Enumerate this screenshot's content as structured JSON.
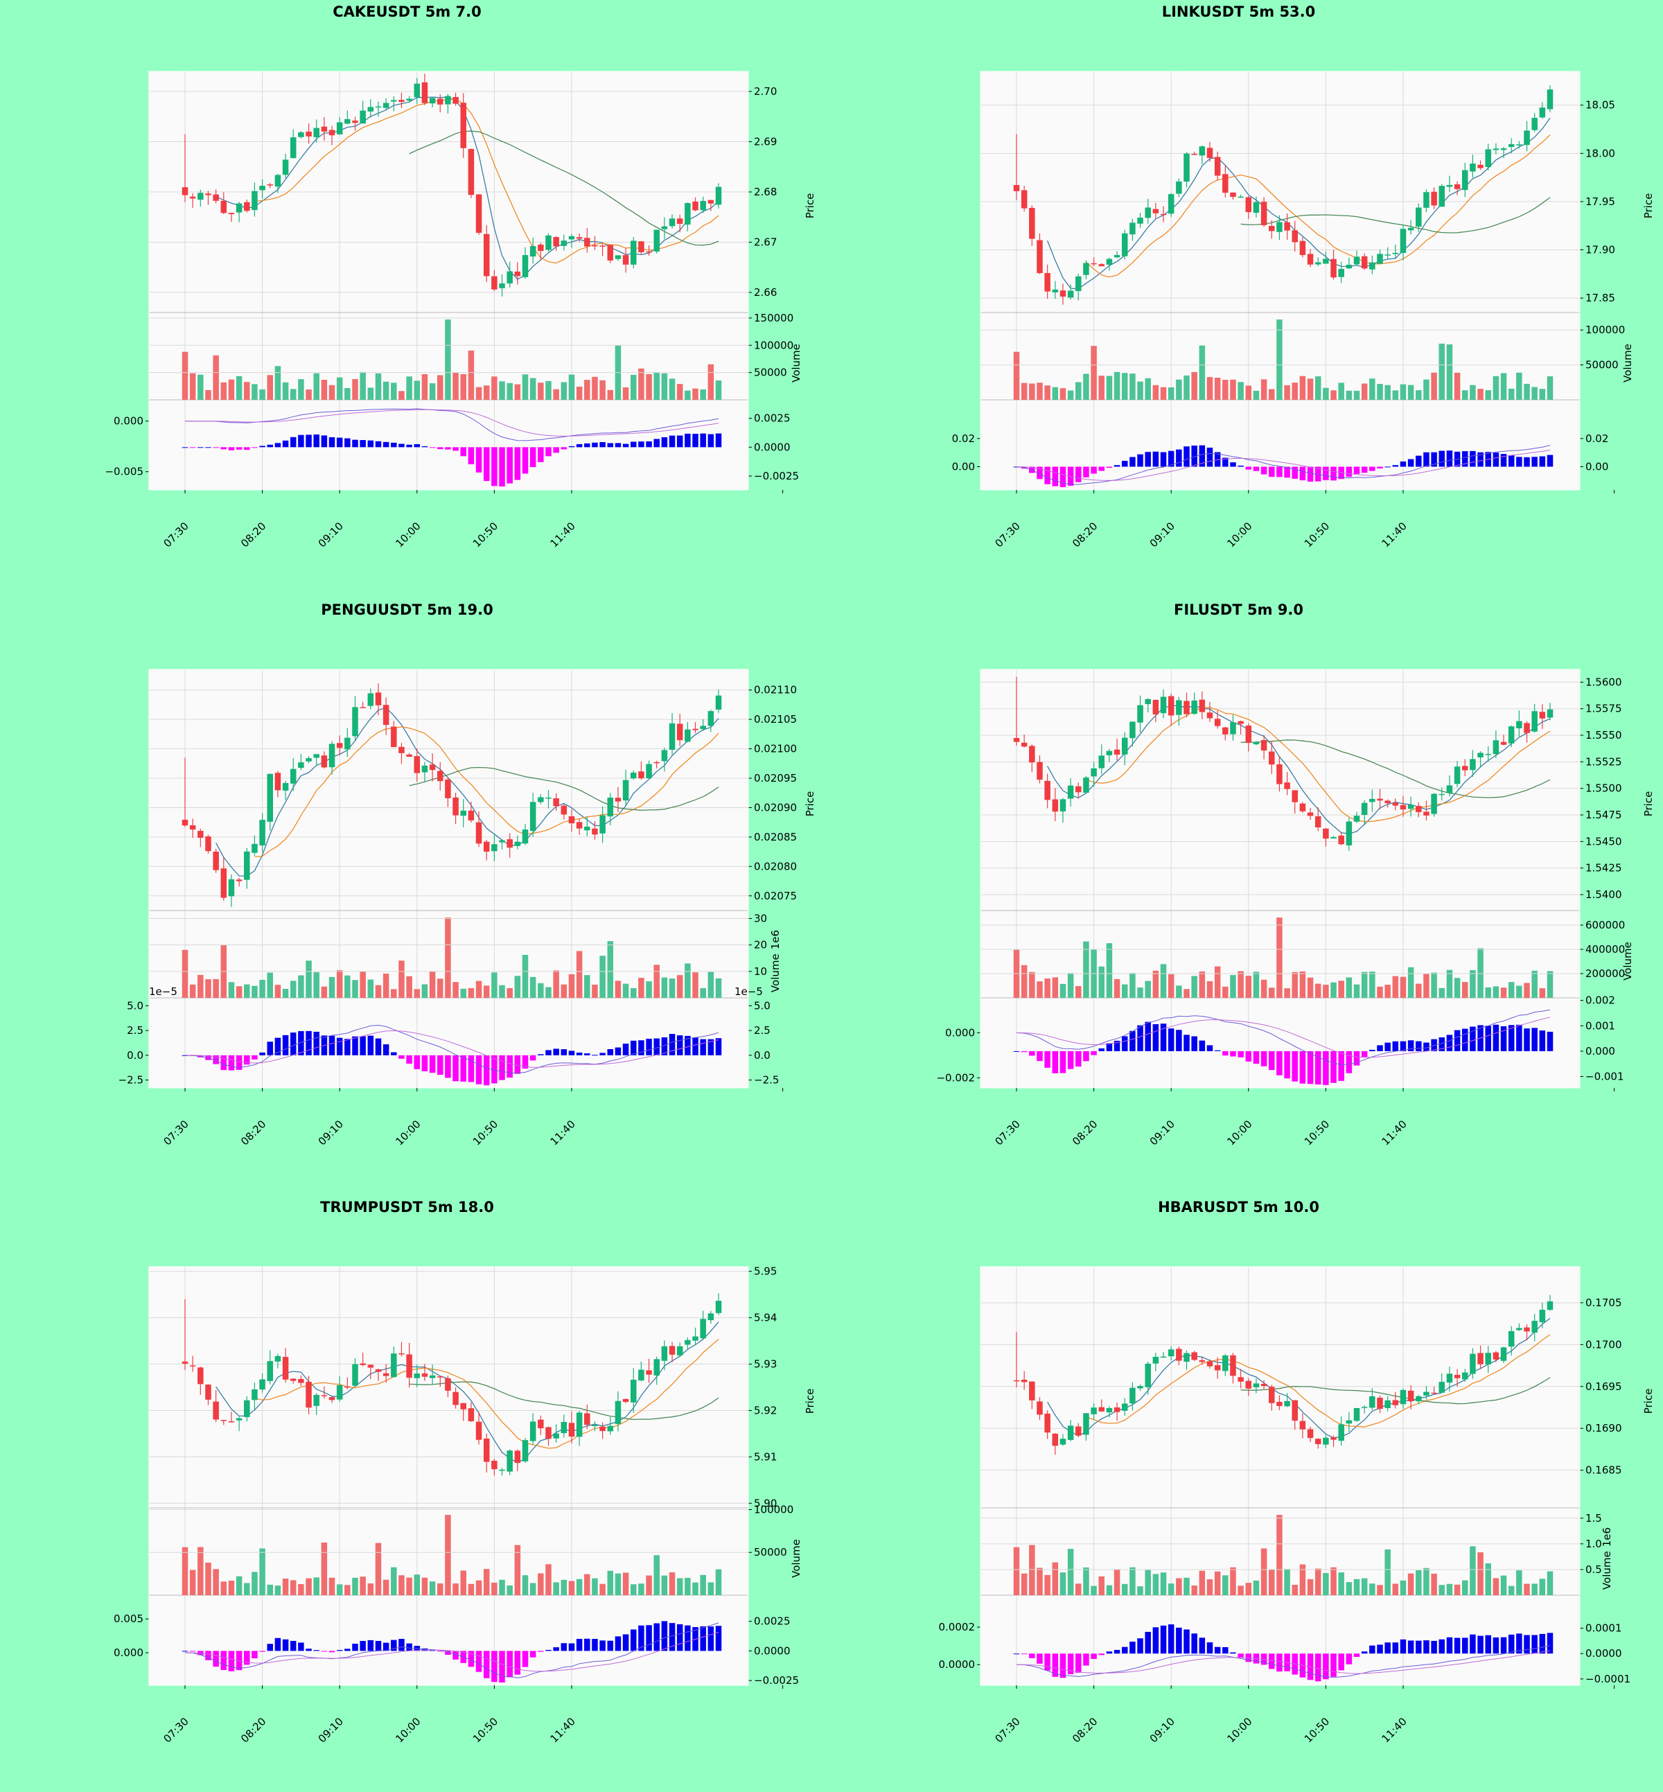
{
  "colors": {
    "background": "#93ffc3",
    "panel": "#fafafa",
    "grid": "#d9d9d9",
    "up": "#14b377",
    "down": "#f03c41",
    "volume_up": "#4cc395",
    "volume_down": "#f16d6d",
    "ma_short": "#3a7ca5",
    "ma_mid": "#f08a24",
    "ma_long": "#4d8a5a",
    "macd_pos": "#0000ee",
    "macd_neg": "#ff00ff",
    "macd_line": "#6b5bd6",
    "signal_line": "#c06ad8"
  },
  "chart_data": [
    {
      "title": "CAKEUSDT 5m 7.0",
      "type": "candlestick",
      "x_ticks": [
        "07:30",
        "08:20",
        "09:10",
        "10:00",
        "10:50",
        "11:40"
      ],
      "price": {
        "label": "Price",
        "ylim": [
          2.656,
          2.704
        ],
        "ticks": [
          "2.66",
          "2.67",
          "2.68",
          "2.69",
          "2.70"
        ],
        "tick_values": [
          2.66,
          2.67,
          2.68,
          2.69,
          2.7
        ],
        "start": 2.6805,
        "waypoints": [
          [
            0,
            2.6805
          ],
          [
            6,
            2.677
          ],
          [
            17,
            2.6915
          ],
          [
            28,
            2.7
          ],
          [
            34,
            2.6985
          ],
          [
            40,
            2.6625
          ],
          [
            48,
            2.6705
          ],
          [
            56,
            2.6675
          ],
          [
            70,
            2.68
          ]
        ],
        "noise": 0.0022
      },
      "volume": {
        "label": "Volume",
        "ylim": [
          0,
          160000
        ],
        "ticks": [
          "50000",
          "100000",
          "150000"
        ],
        "tick_values": [
          50000,
          100000,
          150000
        ]
      },
      "macd": {
        "left_ticks": [
          "0.000",
          "−0.005"
        ],
        "left_values": [
          0.0,
          -0.005
        ],
        "left_range": [
          -0.0068,
          0.0021
        ],
        "right_ticks": [
          "0.0025",
          "0.0000",
          "−0.0025"
        ],
        "right_values": [
          0.0025,
          0.0,
          -0.0025
        ],
        "right_range": [
          -0.0037,
          0.0041
        ]
      }
    },
    {
      "title": "LINKUSDT 5m 53.0",
      "type": "candlestick",
      "x_ticks": [
        "07:30",
        "08:20",
        "09:10",
        "10:00",
        "10:50",
        "11:40"
      ],
      "price": {
        "label": "Price",
        "ylim": [
          17.835,
          18.085
        ],
        "ticks": [
          "17.85",
          "17.90",
          "17.95",
          "18.00",
          "18.05"
        ],
        "tick_values": [
          17.85,
          17.9,
          17.95,
          18.0,
          18.05
        ],
        "start": 17.965,
        "waypoints": [
          [
            0,
            17.965
          ],
          [
            4,
            17.855
          ],
          [
            10,
            17.88
          ],
          [
            18,
            17.94
          ],
          [
            24,
            18.01
          ],
          [
            28,
            17.96
          ],
          [
            33,
            17.93
          ],
          [
            40,
            17.88
          ],
          [
            46,
            17.885
          ],
          [
            54,
            17.955
          ],
          [
            62,
            17.995
          ],
          [
            70,
            18.065
          ]
        ],
        "noise": 0.011
      },
      "volume": {
        "label": "Volume",
        "ylim": [
          0,
          125000
        ],
        "ticks": [
          "50000",
          "100000"
        ],
        "tick_values": [
          50000,
          100000
        ]
      },
      "macd": {
        "left_ticks": [
          "0.02",
          "0.00"
        ],
        "left_values": [
          0.02,
          0.0
        ],
        "left_range": [
          -0.0165,
          0.0475
        ],
        "right_ticks": [
          "0.02",
          "0.00"
        ],
        "right_values": [
          0.02,
          0.0
        ],
        "right_range": [
          -0.0165,
          0.0475
        ]
      }
    },
    {
      "title": "PENGUUSDT 5m 19.0",
      "type": "candlestick",
      "x_ticks": [
        "07:30",
        "08:20",
        "09:10",
        "10:00",
        "10:50",
        "11:40"
      ],
      "price": {
        "label": "Price",
        "ylim": [
          0.020725,
          0.021135
        ],
        "ticks": [
          "0.02075",
          "0.02080",
          "0.02085",
          "0.02090",
          "0.02095",
          "0.02100",
          "0.02105",
          "0.02110"
        ],
        "tick_values": [
          0.02075,
          0.0208,
          0.02085,
          0.0209,
          0.02095,
          0.021,
          0.02105,
          0.0211
        ],
        "start": 0.020875,
        "waypoints": [
          [
            0,
            0.020875
          ],
          [
            6,
            0.02076
          ],
          [
            12,
            0.02095
          ],
          [
            18,
            0.02098
          ],
          [
            24,
            0.0211
          ],
          [
            29,
            0.02098
          ],
          [
            36,
            0.0209
          ],
          [
            40,
            0.02082
          ],
          [
            46,
            0.0209
          ],
          [
            52,
            0.02087
          ],
          [
            58,
            0.02095
          ],
          [
            64,
            0.02103
          ],
          [
            70,
            0.02109
          ]
        ],
        "noise": 2.2e-05
      },
      "volume": {
        "label": "Volume",
        "multiplier": "1e6",
        "ylim": [
          0,
          33
        ],
        "ticks": [
          "10",
          "20",
          "30"
        ],
        "tick_values": [
          10,
          20,
          30
        ]
      },
      "macd": {
        "offset": "1e−5",
        "left_ticks": [
          "5.0",
          "2.5",
          "0.0",
          "−2.5"
        ],
        "left_values": [
          5.0,
          2.5,
          0.0,
          -2.5
        ],
        "left_range": [
          -3.3,
          5.8
        ],
        "right_ticks": [
          "5.0",
          "2.5",
          "0.0",
          "−2.5"
        ],
        "right_values": [
          5.0,
          2.5,
          0.0,
          -2.5
        ],
        "right_range": [
          -3.3,
          5.8
        ]
      }
    },
    {
      "title": "FILUSDT 5m 9.0",
      "type": "candlestick",
      "x_ticks": [
        "07:30",
        "08:20",
        "09:10",
        "10:00",
        "10:50",
        "11:40"
      ],
      "price": {
        "label": "Price",
        "ylim": [
          1.5385,
          1.5612
        ],
        "ticks": [
          "1.5400",
          "1.5425",
          "1.5450",
          "1.5475",
          "1.5500",
          "1.5525",
          "1.5550",
          "1.5575",
          "1.5600"
        ],
        "tick_values": [
          1.54,
          1.5425,
          1.545,
          1.5475,
          1.55,
          1.5525,
          1.555,
          1.5575,
          1.56
        ],
        "start": 1.5545,
        "waypoints": [
          [
            0,
            1.5545
          ],
          [
            5,
            1.548
          ],
          [
            12,
            1.5535
          ],
          [
            18,
            1.558
          ],
          [
            24,
            1.5575
          ],
          [
            30,
            1.555
          ],
          [
            36,
            1.549
          ],
          [
            40,
            1.5445
          ],
          [
            47,
            1.55
          ],
          [
            52,
            1.548
          ],
          [
            58,
            1.5515
          ],
          [
            64,
            1.5555
          ],
          [
            70,
            1.5575
          ]
        ],
        "noise": 0.0012
      },
      "volume": {
        "label": "Volume",
        "ylim": [
          0,
          720000
        ],
        "ticks": [
          "200000",
          "400000",
          "600000"
        ],
        "tick_values": [
          200000,
          400000,
          600000
        ]
      },
      "macd": {
        "left_ticks": [
          "0.000",
          "−0.002"
        ],
        "left_values": [
          0.0,
          -0.002
        ],
        "left_range": [
          -0.00245,
          0.00155
        ],
        "right_ticks": [
          "0.002",
          "0.001",
          "0.000",
          "−0.001"
        ],
        "right_values": [
          0.002,
          0.001,
          0.0,
          -0.001
        ],
        "right_range": [
          -0.00145,
          0.0021
        ]
      }
    },
    {
      "title": "TRUMPUSDT 5m 18.0",
      "type": "candlestick",
      "x_ticks": [
        "07:30",
        "08:20",
        "09:10",
        "10:00",
        "10:50",
        "11:40"
      ],
      "price": {
        "label": "Price",
        "ylim": [
          5.899,
          5.951
        ],
        "ticks": [
          "5.90",
          "5.91",
          "5.92",
          "5.93",
          "5.94",
          "5.95"
        ],
        "tick_values": [
          5.9,
          5.91,
          5.92,
          5.93,
          5.94,
          5.95
        ],
        "start": 5.93,
        "waypoints": [
          [
            0,
            5.93
          ],
          [
            5,
            5.916
          ],
          [
            12,
            5.929
          ],
          [
            18,
            5.921
          ],
          [
            24,
            5.93
          ],
          [
            32,
            5.929
          ],
          [
            36,
            5.921
          ],
          [
            40,
            5.906
          ],
          [
            46,
            5.916
          ],
          [
            54,
            5.918
          ],
          [
            60,
            5.93
          ],
          [
            66,
            5.938
          ],
          [
            70,
            5.945
          ]
        ],
        "noise": 0.0028
      },
      "volume": {
        "label": "Volume",
        "ylim": [
          0,
          102000
        ],
        "ticks": [
          "50000",
          "100000"
        ],
        "tick_values": [
          50000,
          100000
        ]
      },
      "macd": {
        "left_ticks": [
          "0.005",
          "0.000"
        ],
        "left_values": [
          0.005,
          0.0
        ],
        "left_range": [
          -0.0048,
          0.0085
        ],
        "right_ticks": [
          "0.0025",
          "0.0000",
          "−0.0025"
        ],
        "right_values": [
          0.0025,
          0.0,
          -0.0025
        ],
        "right_range": [
          -0.0029,
          0.0047
        ]
      }
    },
    {
      "title": "HBARUSDT 5m 10.0",
      "type": "candlestick",
      "x_ticks": [
        "07:30",
        "08:20",
        "09:10",
        "10:00",
        "10:50",
        "11:40"
      ],
      "price": {
        "label": "Price",
        "ylim": [
          0.16805,
          0.17093
        ],
        "ticks": [
          "0.1685",
          "0.1690",
          "0.1695",
          "0.1700",
          "0.1705"
        ],
        "tick_values": [
          0.1685,
          0.169,
          0.1695,
          0.17,
          0.1705
        ],
        "start": 0.16955,
        "waypoints": [
          [
            0,
            0.16955
          ],
          [
            5,
            0.16885
          ],
          [
            12,
            0.16925
          ],
          [
            20,
            0.1699
          ],
          [
            26,
            0.1698
          ],
          [
            32,
            0.1694
          ],
          [
            40,
            0.16885
          ],
          [
            46,
            0.1693
          ],
          [
            54,
            0.16945
          ],
          [
            60,
            0.1698
          ],
          [
            66,
            0.17025
          ],
          [
            70,
            0.1706
          ]
        ],
        "noise": 0.00012
      },
      "volume": {
        "label": "Volume",
        "multiplier": "1e6",
        "ylim": [
          0,
          1.7
        ],
        "ticks": [
          "0.5",
          "1.0",
          "1.5"
        ],
        "tick_values": [
          0.5,
          1.0,
          1.5
        ]
      },
      "macd": {
        "left_ticks": [
          "0.0002",
          "0.0000"
        ],
        "left_values": [
          0.0002,
          0.0
        ],
        "left_range": [
          -0.00011,
          0.00037
        ],
        "right_ticks": [
          "0.0001",
          "0.0000",
          "−0.0001"
        ],
        "right_values": [
          0.0001,
          0.0,
          -0.0001
        ],
        "right_range": [
          -0.000125,
          0.00023
        ]
      }
    }
  ]
}
